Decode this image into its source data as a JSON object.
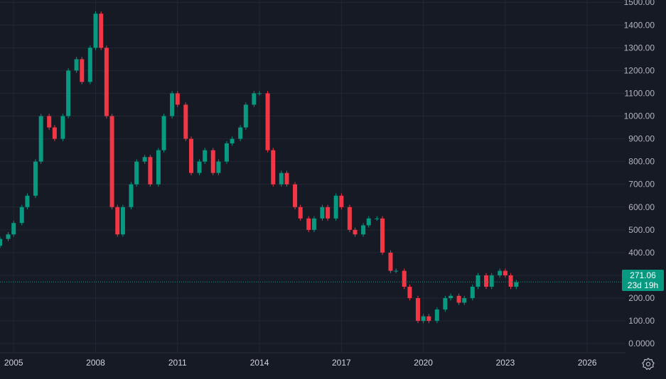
{
  "chart_data": {
    "type": "candlestick",
    "title": "",
    "xlabel": "",
    "ylabel": "",
    "ylim": [
      -40,
      1510
    ],
    "xlim": [
      2004.5,
      2027.4
    ],
    "grid": true,
    "y_ticks": [
      "1500.00",
      "1400.00",
      "1300.00",
      "1200.00",
      "1100.00",
      "1000.00",
      "900.00",
      "800.00",
      "700.00",
      "600.00",
      "500.00",
      "400.00",
      "300.00",
      "200.00",
      "100.00",
      "0.0000"
    ],
    "y_tick_values": [
      1500,
      1400,
      1300,
      1200,
      1100,
      1000,
      900,
      800,
      700,
      600,
      500,
      400,
      300,
      200,
      100,
      0
    ],
    "x_ticks": [
      "2005",
      "2008",
      "2011",
      "2014",
      "2017",
      "2020",
      "2023",
      "2026"
    ],
    "x_tick_values": [
      2005,
      2008,
      2011,
      2014,
      2017,
      2020,
      2023,
      2026
    ],
    "series": [
      {
        "x": [
          2004.5,
          2004.8,
          2005.0,
          2005.3,
          2005.5,
          2005.8,
          2006.0,
          2006.3,
          2006.5,
          2006.8,
          2007.0,
          2007.3,
          2007.5,
          2007.8,
          2008.0,
          2008.2,
          2008.4,
          2008.6,
          2008.8,
          2009.0,
          2009.3,
          2009.5,
          2009.8,
          2010.0,
          2010.3,
          2010.5,
          2010.8,
          2011.0,
          2011.3,
          2011.5,
          2011.8,
          2012.0,
          2012.3,
          2012.5,
          2012.8,
          2013.0,
          2013.3,
          2013.5,
          2013.8,
          2014.0,
          2014.3,
          2014.5,
          2014.8,
          2015.0,
          2015.3,
          2015.5,
          2015.8,
          2016.0,
          2016.3,
          2016.5,
          2016.8,
          2017.0,
          2017.3,
          2017.5,
          2017.8,
          2018.0,
          2018.3,
          2018.5,
          2018.8,
          2019.0,
          2019.3,
          2019.5,
          2019.8,
          2020.0,
          2020.2,
          2020.5,
          2020.8,
          2021.0,
          2021.3,
          2021.5,
          2021.8,
          2022.0,
          2022.3,
          2022.5,
          2022.8,
          2023.0,
          2023.2,
          2023.4
        ],
        "close": [
          460,
          480,
          530,
          600,
          650,
          800,
          1000,
          950,
          900,
          1000,
          1200,
          1250,
          1150,
          1300,
          1450,
          1300,
          1000,
          600,
          480,
          600,
          700,
          800,
          820,
          700,
          850,
          1000,
          1100,
          1050,
          900,
          750,
          800,
          850,
          750,
          800,
          880,
          900,
          950,
          1050,
          1100,
          1100,
          850,
          700,
          750,
          700,
          600,
          550,
          500,
          550,
          600,
          550,
          650,
          600,
          500,
          480,
          520,
          550,
          550,
          400,
          320,
          320,
          250,
          200,
          100,
          120,
          100,
          150,
          200,
          210,
          180,
          200,
          250,
          300,
          250,
          300,
          320,
          300,
          250,
          270
        ],
        "open": [
          430,
          460,
          480,
          530,
          600,
          650,
          800,
          1000,
          950,
          900,
          1000,
          1200,
          1250,
          1150,
          1300,
          1450,
          1300,
          1000,
          600,
          480,
          600,
          700,
          800,
          820,
          700,
          850,
          1000,
          1100,
          1050,
          900,
          750,
          800,
          850,
          750,
          800,
          880,
          900,
          950,
          1050,
          1100,
          1100,
          850,
          700,
          750,
          700,
          600,
          550,
          500,
          550,
          600,
          550,
          650,
          600,
          500,
          480,
          520,
          550,
          550,
          400,
          320,
          320,
          250,
          200,
          100,
          120,
          100,
          150,
          200,
          210,
          180,
          200,
          250,
          300,
          250,
          300,
          320,
          300,
          250
        ],
        "high": [
          470,
          490,
          540,
          610,
          660,
          810,
          1010,
          1010,
          960,
          1010,
          1210,
          1260,
          1260,
          1310,
          1460,
          1460,
          1310,
          1010,
          610,
          610,
          710,
          810,
          830,
          830,
          860,
          1010,
          1110,
          1110,
          1060,
          910,
          810,
          860,
          860,
          810,
          890,
          910,
          960,
          1060,
          1110,
          1110,
          1110,
          860,
          760,
          760,
          710,
          610,
          560,
          560,
          610,
          610,
          660,
          660,
          610,
          510,
          530,
          560,
          560,
          560,
          410,
          330,
          330,
          260,
          210,
          130,
          130,
          160,
          210,
          220,
          220,
          210,
          260,
          310,
          310,
          310,
          330,
          330,
          310,
          280
        ],
        "low": [
          420,
          450,
          470,
          520,
          590,
          640,
          790,
          940,
          890,
          890,
          990,
          1190,
          1140,
          1140,
          1290,
          1290,
          990,
          590,
          470,
          470,
          590,
          690,
          790,
          690,
          690,
          840,
          990,
          1040,
          890,
          740,
          740,
          790,
          740,
          740,
          790,
          870,
          890,
          940,
          1040,
          1090,
          840,
          690,
          690,
          690,
          590,
          540,
          490,
          490,
          540,
          540,
          540,
          590,
          490,
          470,
          470,
          510,
          540,
          390,
          310,
          310,
          240,
          190,
          90,
          90,
          90,
          90,
          140,
          190,
          170,
          170,
          190,
          240,
          240,
          240,
          290,
          290,
          240,
          240
        ]
      }
    ],
    "last_price_label": "271.06",
    "countdown_label": "23d 19h",
    "colors": {
      "up": "#089981",
      "down": "#f23645",
      "background": "#161a25",
      "grid": "#232733",
      "axis_text": "#b2b5be",
      "price_line": "#089981"
    },
    "last_price": 271.06
  }
}
